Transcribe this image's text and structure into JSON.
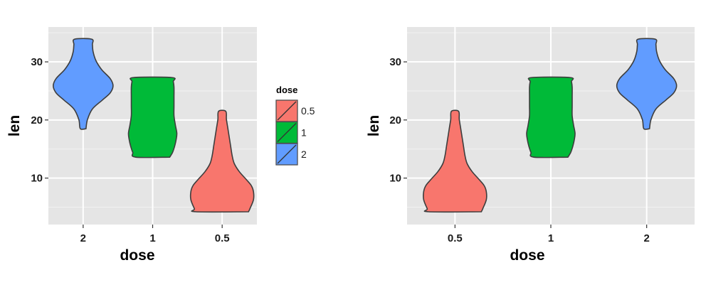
{
  "legend": {
    "title": "dose",
    "items": [
      {
        "label": "0.5",
        "color": "#F8766D"
      },
      {
        "label": "1",
        "color": "#00BA38"
      },
      {
        "label": "2",
        "color": "#619CFF"
      }
    ]
  },
  "colors": {
    "0.5": "#F8766D",
    "1": "#00BA38",
    "2": "#619CFF",
    "panel": "#E5E5E5",
    "grid": "#FFFFFF",
    "outline": "#3d3d3d"
  },
  "chart_data": [
    {
      "type": "violin",
      "xlabel": "dose",
      "ylabel": "len",
      "categories": [
        "2",
        "1",
        "0.5"
      ],
      "ylim": [
        2,
        36
      ],
      "yticks": [
        10,
        20,
        30
      ],
      "grid": true,
      "legend": "right",
      "series": [
        {
          "dose": "2",
          "min": 18.5,
          "max": 33.9
        },
        {
          "dose": "1",
          "min": 13.6,
          "max": 27.3
        },
        {
          "dose": "0.5",
          "min": 4.2,
          "max": 21.5
        }
      ]
    },
    {
      "type": "violin",
      "xlabel": "dose",
      "ylabel": "len",
      "categories": [
        "0.5",
        "1",
        "2"
      ],
      "ylim": [
        2,
        36
      ],
      "yticks": [
        10,
        20,
        30
      ],
      "grid": true,
      "legend": "none",
      "series": [
        {
          "dose": "0.5",
          "min": 4.2,
          "max": 21.5
        },
        {
          "dose": "1",
          "min": 13.6,
          "max": 27.3
        },
        {
          "dose": "2",
          "min": 18.5,
          "max": 33.9
        }
      ]
    }
  ]
}
